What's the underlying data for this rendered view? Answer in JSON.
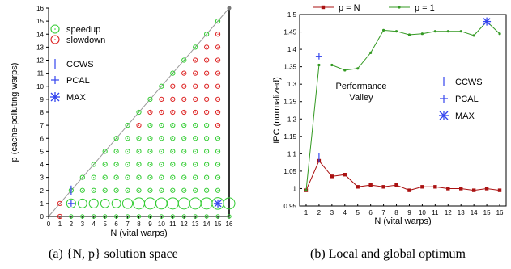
{
  "chart_data": [
    {
      "type": "scatter",
      "title": "",
      "xlabel": "N (vital warps)",
      "ylabel": "p (cache-polluting warps)",
      "xlim": [
        0,
        16
      ],
      "ylim": [
        0,
        16
      ],
      "x_ticks": [
        "0",
        "1",
        "2",
        "3",
        "4",
        "5",
        "6",
        "7",
        "8",
        "9",
        "10",
        "11",
        "12",
        "13",
        "14",
        "15",
        "16"
      ],
      "y_ticks": [
        "0",
        "1",
        "2",
        "3",
        "4",
        "5",
        "6",
        "7",
        "8",
        "9",
        "10",
        "11",
        "12",
        "13",
        "14",
        "15",
        "16"
      ],
      "legend": [
        {
          "label": "speedup",
          "marker": "circle",
          "color": "#33cc33"
        },
        {
          "label": "slowdown",
          "marker": "circle",
          "color": "#dd2222"
        },
        {
          "label": "CCWS",
          "marker": "vline",
          "color": "#3344ee"
        },
        {
          "label": "PCAL",
          "marker": "plus",
          "color": "#3344ee"
        },
        {
          "label": "MAX",
          "marker": "asterisk",
          "color": "#3344ee"
        }
      ],
      "slowdown_points": [
        [
          1,
          0
        ],
        [
          1,
          1
        ],
        [
          8,
          7
        ],
        [
          9,
          8
        ],
        [
          10,
          8
        ],
        [
          10,
          9
        ],
        [
          11,
          8
        ],
        [
          11,
          9
        ],
        [
          11,
          10
        ],
        [
          12,
          8
        ],
        [
          12,
          9
        ],
        [
          12,
          10
        ],
        [
          12,
          11
        ],
        [
          13,
          8
        ],
        [
          13,
          9
        ],
        [
          13,
          10
        ],
        [
          13,
          11
        ],
        [
          13,
          12
        ],
        [
          14,
          8
        ],
        [
          14,
          9
        ],
        [
          14,
          10
        ],
        [
          14,
          11
        ],
        [
          14,
          12
        ],
        [
          14,
          13
        ],
        [
          15,
          7
        ],
        [
          15,
          8
        ],
        [
          15,
          9
        ],
        [
          15,
          10
        ],
        [
          15,
          11
        ],
        [
          15,
          12
        ],
        [
          15,
          13
        ],
        [
          15,
          14
        ]
      ],
      "large_speedup_points": [
        [
          2,
          0,
          1.08
        ],
        [
          3,
          0,
          1.03
        ],
        [
          4,
          0,
          1.04
        ],
        [
          5,
          0,
          1.0
        ],
        [
          6,
          0,
          1.01
        ],
        [
          7,
          0,
          1.005
        ],
        [
          8,
          0,
          1.01
        ],
        [
          9,
          0,
          0.995
        ],
        [
          10,
          0,
          1.005
        ],
        [
          11,
          0,
          1.005
        ],
        [
          12,
          0,
          1.0
        ],
        [
          13,
          0,
          1.0
        ],
        [
          14,
          0,
          0.995
        ],
        [
          15,
          0,
          1.0
        ],
        [
          16,
          0,
          0.995
        ],
        [
          2,
          1,
          1.35
        ],
        [
          3,
          1,
          1.34
        ],
        [
          4,
          1,
          1.35
        ],
        [
          5,
          1,
          1.33
        ],
        [
          6,
          1,
          1.34
        ],
        [
          7,
          1,
          1.39
        ],
        [
          8,
          1,
          1.45
        ],
        [
          9,
          1,
          1.45
        ],
        [
          10,
          1,
          1.44
        ],
        [
          11,
          1,
          1.45
        ],
        [
          12,
          1,
          1.45
        ],
        [
          13,
          1,
          1.45
        ],
        [
          14,
          1,
          1.45
        ],
        [
          15,
          1,
          1.48
        ],
        [
          16,
          1,
          1.45
        ]
      ],
      "markers": {
        "ccws": [
          2,
          2
        ],
        "pcal": [
          2,
          1
        ],
        "max": [
          15,
          1
        ]
      },
      "diagonal": [
        [
          0,
          0
        ],
        [
          16,
          16
        ]
      ]
    },
    {
      "type": "line",
      "title": "",
      "xlabel": "N (vital warps)",
      "ylabel": "IPC (normalized)",
      "ylim": [
        0.95,
        1.5
      ],
      "y_ticks": [
        "0.95",
        "1",
        "1.05",
        "1.1",
        "1.15",
        "1.2",
        "1.25",
        "1.3",
        "1.35",
        "1.4",
        "1.45",
        "1.5"
      ],
      "x": [
        1,
        2,
        3,
        4,
        5,
        6,
        7,
        8,
        9,
        10,
        11,
        12,
        13,
        14,
        15,
        16
      ],
      "series": [
        {
          "name": "p = N",
          "color": "#aa1111",
          "marker": "square",
          "values": [
            0.995,
            1.08,
            1.035,
            1.04,
            1.005,
            1.01,
            1.005,
            1.01,
            0.995,
            1.005,
            1.005,
            1.0,
            1.0,
            0.995,
            1.0,
            0.995
          ]
        },
        {
          "name": "p = 1",
          "color": "#339922",
          "marker": "dot",
          "values": [
            0.995,
            1.355,
            1.355,
            1.34,
            1.345,
            1.39,
            1.455,
            1.452,
            1.442,
            1.445,
            1.452,
            1.452,
            1.452,
            1.44,
            1.48,
            1.445
          ]
        }
      ],
      "annotations": {
        "valley_line1": "Performance",
        "valley_line2": "Valley",
        "ccws_label": "CCWS",
        "pcal_label": "PCAL",
        "max_label": "MAX",
        "ccws_point": [
          2,
          1.08
        ],
        "pcal_point": [
          2,
          1.38
        ],
        "max_point": [
          15,
          1.48
        ]
      }
    }
  ],
  "captions": {
    "left": "(a) {N, p} solution space",
    "right": "(b) Local and global optimum"
  }
}
